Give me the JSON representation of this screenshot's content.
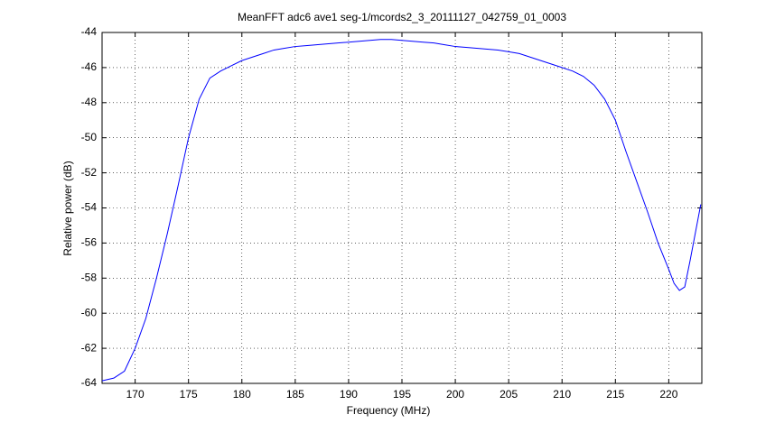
{
  "chart_data": {
    "type": "line",
    "title": "MeanFFT adc6 ave1 seg-1/mcords2_3_20111127_042759_01_0003",
    "x_label": "Frequency (MHz)",
    "y_label": "Relative power (dB)",
    "x": [
      166.9,
      168,
      169,
      170,
      171,
      172,
      173,
      174,
      175,
      176,
      177,
      178,
      179,
      180,
      181,
      182,
      183,
      184,
      185,
      186,
      187,
      188,
      189,
      190,
      191,
      192,
      193,
      194,
      195,
      196,
      197,
      198,
      199,
      200,
      201,
      202,
      203,
      204,
      205,
      206,
      207,
      208,
      209,
      210,
      211,
      212,
      213,
      214,
      215,
      216,
      217,
      218,
      219,
      220,
      220.5,
      221,
      221.5,
      222,
      223
    ],
    "series": [
      {
        "name": "MeanFFT",
        "color": "#0000ff",
        "values": [
          -63.85,
          -63.7,
          -63.3,
          -62.0,
          -60.3,
          -58.0,
          -55.5,
          -52.8,
          -50.0,
          -47.8,
          -46.6,
          -46.2,
          -45.9,
          -45.6,
          -45.4,
          -45.2,
          -45.0,
          -44.9,
          -44.8,
          -44.75,
          -44.7,
          -44.65,
          -44.6,
          -44.55,
          -44.5,
          -44.45,
          -44.4,
          -44.4,
          -44.45,
          -44.5,
          -44.55,
          -44.6,
          -44.7,
          -44.8,
          -44.85,
          -44.9,
          -44.95,
          -45.0,
          -45.1,
          -45.2,
          -45.4,
          -45.6,
          -45.8,
          -46.0,
          -46.2,
          -46.5,
          -47.0,
          -47.8,
          -49.0,
          -50.8,
          -52.5,
          -54.2,
          -56.0,
          -57.5,
          -58.3,
          -58.7,
          -58.5,
          -57.0,
          -53.8
        ]
      }
    ],
    "xlim": [
      166.9,
      223.1
    ],
    "ylim": [
      -64,
      -44
    ],
    "xticks": [
      170,
      175,
      180,
      185,
      190,
      195,
      200,
      205,
      210,
      215,
      220
    ],
    "yticks": [
      -64,
      -62,
      -60,
      -58,
      -56,
      -54,
      -52,
      -50,
      -48,
      -46,
      -44
    ],
    "grid": true
  }
}
